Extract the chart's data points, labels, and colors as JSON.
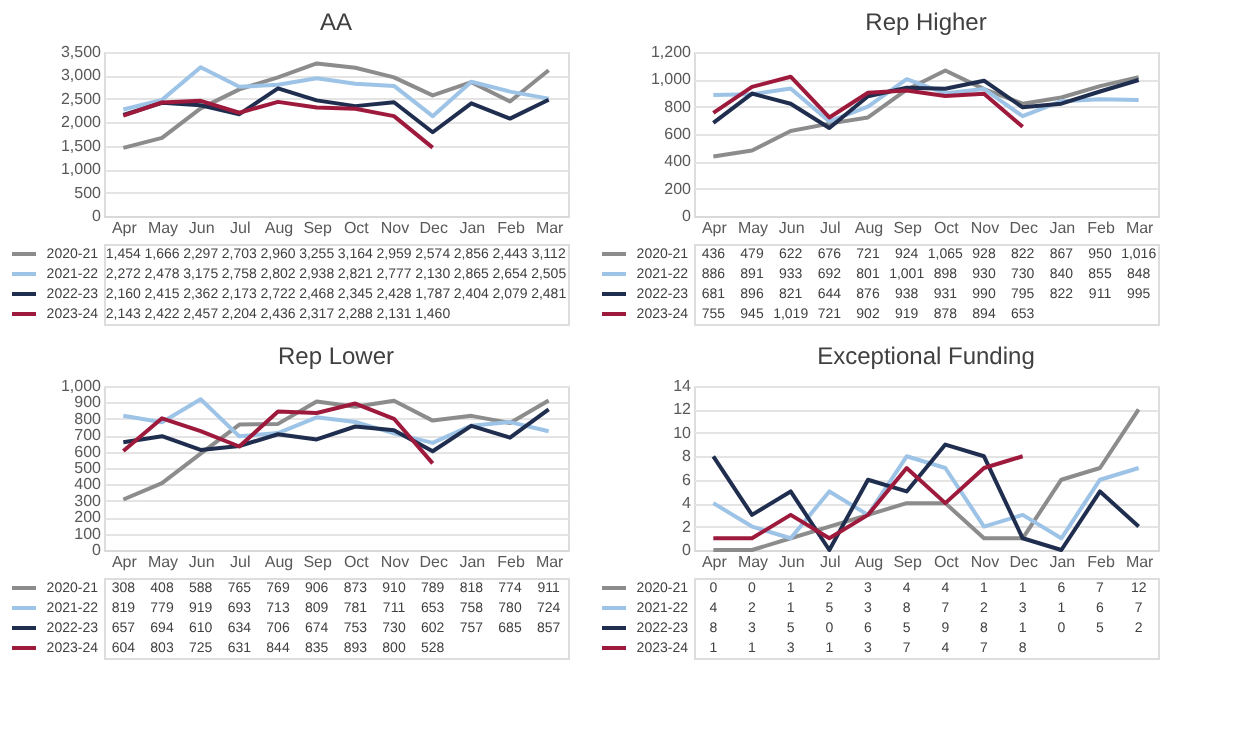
{
  "chart_data": [
    {
      "type": "line",
      "title": "AA",
      "categories": [
        "Apr",
        "May",
        "Jun",
        "Jul",
        "Aug",
        "Sep",
        "Oct",
        "Nov",
        "Dec",
        "Jan",
        "Feb",
        "Mar"
      ],
      "ylim": [
        0,
        3500
      ],
      "yticks": [
        0,
        500,
        {
          "value": 1000,
          "label": "1,000"
        },
        {
          "value": 1500,
          "label": "1,500"
        },
        {
          "value": 2000,
          "label": "2,000"
        },
        {
          "value": 2500,
          "label": "2,500"
        },
        {
          "value": 3000,
          "label": "3,000"
        },
        {
          "value": 3500,
          "label": "3,500"
        }
      ],
      "grid": "y",
      "legend": "bottom",
      "series": [
        {
          "name": "2020-21",
          "color": "#8c8c8c",
          "values": [
            1454,
            1666,
            2297,
            2703,
            2960,
            3255,
            3164,
            2959,
            2574,
            2856,
            2443,
            3112
          ],
          "value_labels": [
            "1,454",
            "1,666",
            "2,297",
            "2,703",
            "2,960",
            "3,255",
            "3,164",
            "2,959",
            "2,574",
            "2,856",
            "2,443",
            "3,112"
          ]
        },
        {
          "name": "2021-22",
          "color": "#9dc3e6",
          "values": [
            2272,
            2478,
            3175,
            2758,
            2802,
            2938,
            2821,
            2777,
            2130,
            2865,
            2654,
            2505
          ],
          "value_labels": [
            "2,272",
            "2,478",
            "3,175",
            "2,758",
            "2,802",
            "2,938",
            "2,821",
            "2,777",
            "2,130",
            "2,865",
            "2,654",
            "2,505"
          ]
        },
        {
          "name": "2022-23",
          "color": "#1f2d4f",
          "values": [
            2160,
            2415,
            2362,
            2173,
            2722,
            2468,
            2345,
            2428,
            1787,
            2404,
            2079,
            2481
          ],
          "value_labels": [
            "2,160",
            "2,415",
            "2,362",
            "2,173",
            "2,722",
            "2,468",
            "2,345",
            "2,428",
            "1,787",
            "2,404",
            "2,079",
            "2,481"
          ]
        },
        {
          "name": "2023-24",
          "color": "#9e1a3c",
          "values": [
            2143,
            2422,
            2457,
            2204,
            2436,
            2317,
            2288,
            2131,
            1460,
            null,
            null,
            null
          ],
          "value_labels": [
            "2,143",
            "2,422",
            "2,457",
            "2,204",
            "2,436",
            "2,317",
            "2,288",
            "2,131",
            "1,460",
            null,
            null,
            null
          ]
        }
      ]
    },
    {
      "type": "line",
      "title": "Rep Higher",
      "categories": [
        "Apr",
        "May",
        "Jun",
        "Jul",
        "Aug",
        "Sep",
        "Oct",
        "Nov",
        "Dec",
        "Jan",
        "Feb",
        "Mar"
      ],
      "ylim": [
        0,
        1200
      ],
      "yticks": [
        0,
        200,
        400,
        600,
        800,
        {
          "value": 1000,
          "label": "1,000"
        },
        {
          "value": 1200,
          "label": "1,200"
        }
      ],
      "grid": "y",
      "legend": "bottom",
      "series": [
        {
          "name": "2020-21",
          "color": "#8c8c8c",
          "values": [
            436,
            479,
            622,
            676,
            721,
            924,
            1065,
            928,
            822,
            867,
            950,
            1016
          ],
          "value_labels": [
            "436",
            "479",
            "622",
            "676",
            "721",
            "924",
            "1,065",
            "928",
            "822",
            "867",
            "950",
            "1,016"
          ]
        },
        {
          "name": "2021-22",
          "color": "#9dc3e6",
          "values": [
            886,
            891,
            933,
            692,
            801,
            1001,
            898,
            930,
            730,
            840,
            855,
            848
          ],
          "value_labels": [
            "886",
            "891",
            "933",
            "692",
            "801",
            "1,001",
            "898",
            "930",
            "730",
            "840",
            "855",
            "848"
          ]
        },
        {
          "name": "2022-23",
          "color": "#1f2d4f",
          "values": [
            681,
            896,
            821,
            644,
            876,
            938,
            931,
            990,
            795,
            822,
            911,
            995
          ],
          "value_labels": [
            "681",
            "896",
            "821",
            "644",
            "876",
            "938",
            "931",
            "990",
            "795",
            "822",
            "911",
            "995"
          ]
        },
        {
          "name": "2023-24",
          "color": "#9e1a3c",
          "values": [
            755,
            945,
            1019,
            721,
            902,
            919,
            878,
            894,
            653,
            null,
            null,
            null
          ],
          "value_labels": [
            "755",
            "945",
            "1,019",
            "721",
            "902",
            "919",
            "878",
            "894",
            "653",
            null,
            null,
            null
          ]
        }
      ]
    },
    {
      "type": "line",
      "title": "Rep Lower",
      "categories": [
        "Apr",
        "May",
        "Jun",
        "Jul",
        "Aug",
        "Sep",
        "Oct",
        "Nov",
        "Dec",
        "Jan",
        "Feb",
        "Mar"
      ],
      "ylim": [
        0,
        1000
      ],
      "yticks": [
        0,
        100,
        200,
        300,
        400,
        500,
        600,
        700,
        800,
        900,
        {
          "value": 1000,
          "label": "1,000"
        }
      ],
      "grid": "y",
      "legend": "bottom",
      "data_labels": true,
      "series": [
        {
          "name": "2020-21",
          "color": "#8c8c8c",
          "values": [
            308,
            408,
            588,
            765,
            769,
            906,
            873,
            910,
            789,
            818,
            774,
            911
          ]
        },
        {
          "name": "2021-22",
          "color": "#9dc3e6",
          "values": [
            819,
            779,
            919,
            693,
            713,
            809,
            781,
            711,
            653,
            758,
            780,
            724
          ]
        },
        {
          "name": "2022-23",
          "color": "#1f2d4f",
          "values": [
            657,
            694,
            610,
            634,
            706,
            674,
            753,
            730,
            602,
            757,
            685,
            857
          ]
        },
        {
          "name": "2023-24",
          "color": "#9e1a3c",
          "values": [
            604,
            803,
            725,
            631,
            844,
            835,
            893,
            800,
            528,
            null,
            null,
            null
          ]
        }
      ]
    },
    {
      "type": "line",
      "title": "Exceptional Funding",
      "categories": [
        "Apr",
        "May",
        "Jun",
        "Jul",
        "Aug",
        "Sep",
        "Oct",
        "Nov",
        "Dec",
        "Jan",
        "Feb",
        "Mar"
      ],
      "ylim": [
        0,
        14
      ],
      "yticks": [
        0,
        2,
        4,
        6,
        8,
        10,
        12,
        14
      ],
      "grid": "y",
      "legend": "bottom",
      "data_labels": true,
      "series": [
        {
          "name": "2020-21",
          "color": "#8c8c8c",
          "values": [
            0,
            0,
            1,
            2,
            3,
            4,
            4,
            1,
            1,
            6,
            7,
            12
          ]
        },
        {
          "name": "2021-22",
          "color": "#9dc3e6",
          "values": [
            4,
            2,
            1,
            5,
            3,
            8,
            7,
            2,
            3,
            1,
            6,
            7
          ]
        },
        {
          "name": "2022-23",
          "color": "#1f2d4f",
          "values": [
            8,
            3,
            5,
            0,
            6,
            5,
            9,
            8,
            1,
            0,
            5,
            2
          ]
        },
        {
          "name": "2023-24",
          "color": "#9e1a3c",
          "values": [
            1,
            1,
            3,
            1,
            3,
            7,
            4,
            7,
            8,
            null,
            null,
            null
          ]
        }
      ]
    }
  ]
}
